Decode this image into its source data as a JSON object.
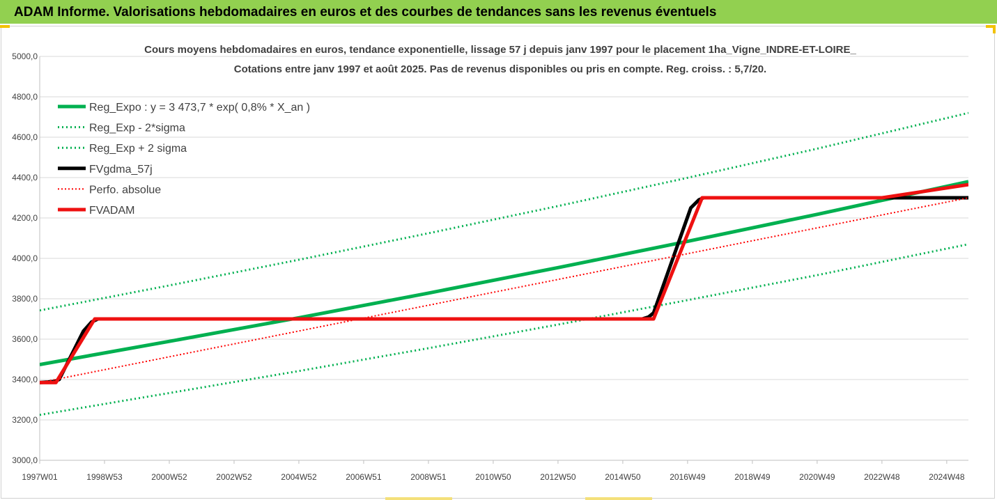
{
  "banner": {
    "title": "ADAM Informe. Valorisations hebdomadaires en euros et des courbes de tendances sans les revenus éventuels",
    "bg_color": "#92d050"
  },
  "chart_data": {
    "type": "line",
    "title": "Cours moyens hebdomadaires en euros, tendance exponentielle, lissage 57 j depuis janv 1997 pour le placement 1ha_Vigne_INDRE-ET-LOIRE_",
    "subtitle": "Cotations entre janv 1997 et août 2025.  Pas de revenus disponibles ou pris en compte. Reg. croiss. : 5,7/20.",
    "xlabel": "",
    "ylabel": "",
    "ylim": [
      3000,
      5000
    ],
    "xlim": [
      1997.0,
      2025.67
    ],
    "y_ticks": [
      "3000,0",
      "3200,0",
      "3400,0",
      "3600,0",
      "3800,0",
      "4000,0",
      "4200,0",
      "4400,0",
      "4600,0",
      "4800,0",
      "5000,0"
    ],
    "y_tick_values": [
      3000,
      3200,
      3400,
      3600,
      3800,
      4000,
      4200,
      4400,
      4600,
      4800,
      5000
    ],
    "x_ticks": [
      "1997W01",
      "1998W53",
      "2000W52",
      "2002W52",
      "2004W52",
      "2006W51",
      "2008W51",
      "2010W50",
      "2012W50",
      "2014W50",
      "2016W49",
      "2018W49",
      "2020W49",
      "2022W48",
      "2024W48"
    ],
    "x_tick_values": [
      1997.0,
      1999.0,
      2001.0,
      2003.0,
      2005.0,
      2007.0,
      2009.0,
      2011.0,
      2013.0,
      2015.0,
      2017.0,
      2019.0,
      2021.0,
      2023.0,
      2025.0
    ],
    "grid": true,
    "legend_position": "top-left",
    "series": [
      {
        "name": "Reg_Expo : y = 3 473,7 * exp( 0,8% *  X_an )",
        "color": "#00b050",
        "style": "solid",
        "width": 5,
        "x": [
          1997.0,
          2001.0,
          2005.0,
          2009.0,
          2013.0,
          2017.0,
          2021.0,
          2025.67
        ],
        "y": [
          3474,
          3589,
          3706,
          3828,
          3954,
          4084,
          4218,
          4380
        ]
      },
      {
        "name": "Reg_Exp - 2*sigma",
        "color": "#00b050",
        "style": "dotted",
        "width": 3,
        "x": [
          1997.0,
          2001.0,
          2005.0,
          2009.0,
          2013.0,
          2017.0,
          2021.0,
          2025.67
        ],
        "y": [
          3225,
          3333,
          3442,
          3555,
          3672,
          3793,
          3917,
          4070
        ]
      },
      {
        "name": "Reg_Exp + 2 sigma",
        "color": "#00b050",
        "style": "dotted",
        "width": 3,
        "x": [
          1997.0,
          2001.0,
          2005.0,
          2009.0,
          2013.0,
          2017.0,
          2021.0,
          2025.67
        ],
        "y": [
          3742,
          3866,
          3993,
          4124,
          4259,
          4399,
          4543,
          4720
        ]
      },
      {
        "name": "FVgdma_57j",
        "color": "#000000",
        "style": "solid",
        "width": 5,
        "x": [
          1997.0,
          1997.45,
          1997.6,
          1998.35,
          1998.6,
          1998.8,
          2015.6,
          2015.8,
          2015.95,
          2017.1,
          2017.35,
          2017.5,
          2025.67
        ],
        "y": [
          3385,
          3390,
          3400,
          3640,
          3685,
          3700,
          3700,
          3710,
          3730,
          4250,
          4290,
          4300,
          4300
        ]
      },
      {
        "name": "Perfo. absolue",
        "color": "#ff0000",
        "style": "dotted",
        "width": 2,
        "x": [
          1997.0,
          2025.67
        ],
        "y": [
          3385,
          4300
        ]
      },
      {
        "name": "FVADAM",
        "color": "#ee1111",
        "style": "solid",
        "width": 5,
        "x": [
          1997.0,
          1997.5,
          1998.7,
          2015.95,
          2017.45,
          2023.0,
          2025.67
        ],
        "y": [
          3385,
          3385,
          3700,
          3700,
          4300,
          4300,
          4365
        ]
      }
    ]
  }
}
